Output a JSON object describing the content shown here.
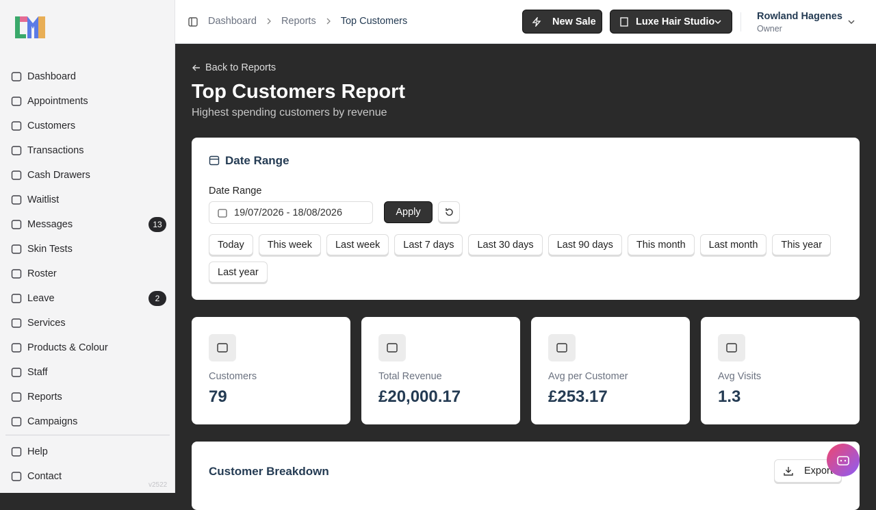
{
  "sidebar": {
    "nav": [
      {
        "label": "Dashboard"
      },
      {
        "label": "Appointments"
      },
      {
        "label": "Customers"
      },
      {
        "label": "Transactions"
      },
      {
        "label": "Cash Drawers"
      },
      {
        "label": "Waitlist"
      },
      {
        "label": "Messages",
        "badge": 13
      },
      {
        "label": "Skin Tests"
      },
      {
        "label": "Roster"
      },
      {
        "label": "Leave",
        "badge": 2
      },
      {
        "label": "Services"
      },
      {
        "label": "Products & Colour"
      },
      {
        "label": "Staff"
      },
      {
        "label": "Reports"
      },
      {
        "label": "Campaigns"
      }
    ],
    "footer_nav": [
      {
        "label": "Help"
      },
      {
        "label": "Contact"
      }
    ],
    "version": "v2522"
  },
  "header": {
    "breadcrumbs": [
      "Dashboard",
      "Reports",
      "Top Customers"
    ],
    "new_sale": "New Sale",
    "business": "Luxe Hair Studio",
    "user": {
      "name": "Rowland Hagenes",
      "role": "Owner"
    }
  },
  "page": {
    "back": "Back to Reports",
    "title": "Top Customers Report",
    "subtitle": "Highest spending customers by revenue"
  },
  "date_range": {
    "heading": "Date Range",
    "label": "Date Range",
    "value": "19/07/2026 - 18/08/2026",
    "apply": "Apply",
    "presets": [
      "Today",
      "This week",
      "Last week",
      "Last 7 days",
      "Last 30 days",
      "Last 90 days",
      "This month",
      "Last month",
      "This year",
      "Last year"
    ]
  },
  "stats": [
    {
      "label": "Customers",
      "value": "79"
    },
    {
      "label": "Total Revenue",
      "value": "£20,000.17"
    },
    {
      "label": "Avg per Customer",
      "value": "£253.17"
    },
    {
      "label": "Avg Visits",
      "value": "1.3"
    }
  ],
  "breakdown": {
    "title": "Customer Breakdown",
    "export": "Export"
  }
}
